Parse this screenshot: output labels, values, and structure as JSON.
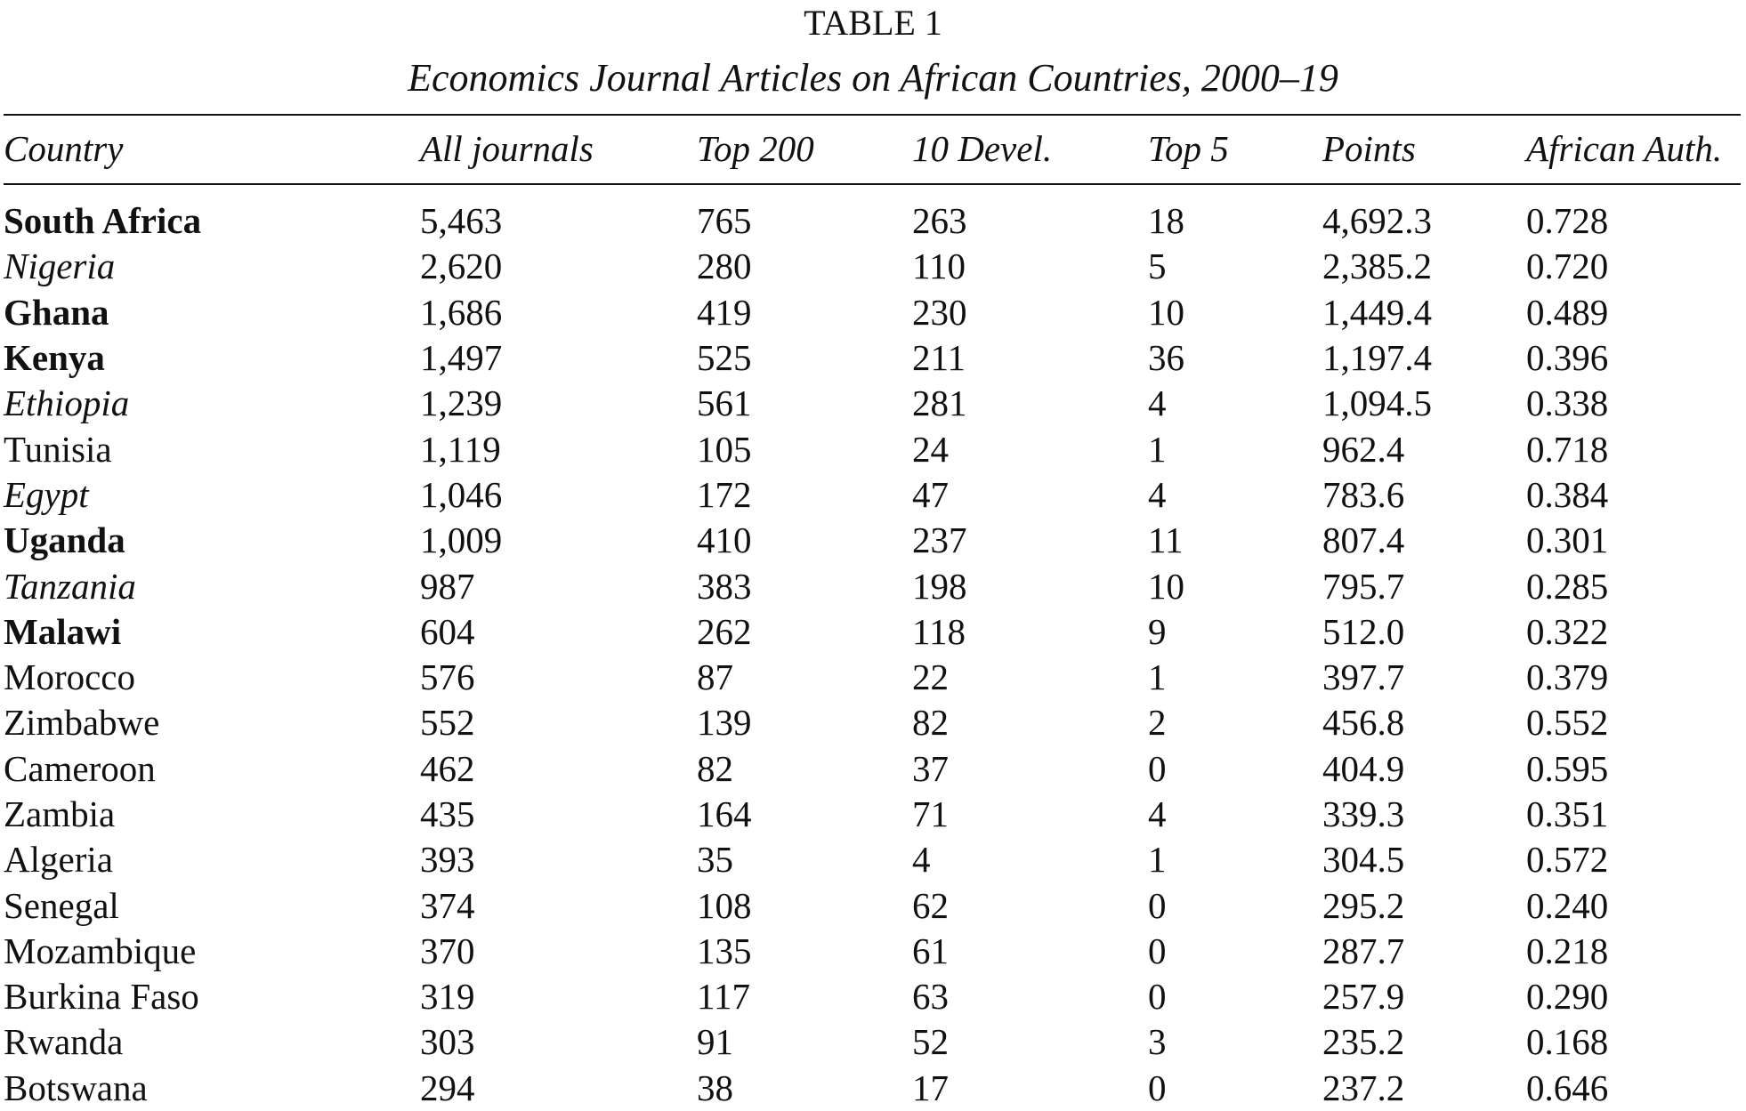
{
  "table": {
    "number": "TABLE 1",
    "caption": "Economics Journal Articles on African Countries, 2000–19",
    "columns": [
      "Country",
      "All journals",
      "Top 200",
      "10 Devel.",
      "Top 5",
      "Points",
      "African Auth."
    ],
    "rows": [
      {
        "country": "South Africa",
        "style": "bold",
        "all_journals": "5,463",
        "top_200": "765",
        "ten_devel": "263",
        "top_5": "18",
        "points": "4,692.3",
        "african_auth": "0.728"
      },
      {
        "country": "Nigeria",
        "style": "italic",
        "all_journals": "2,620",
        "top_200": "280",
        "ten_devel": "110",
        "top_5": "5",
        "points": "2,385.2",
        "african_auth": "0.720"
      },
      {
        "country": "Ghana",
        "style": "bold",
        "all_journals": "1,686",
        "top_200": "419",
        "ten_devel": "230",
        "top_5": "10",
        "points": "1,449.4",
        "african_auth": "0.489"
      },
      {
        "country": "Kenya",
        "style": "bold",
        "all_journals": "1,497",
        "top_200": "525",
        "ten_devel": "211",
        "top_5": "36",
        "points": "1,197.4",
        "african_auth": "0.396"
      },
      {
        "country": "Ethiopia",
        "style": "italic",
        "all_journals": "1,239",
        "top_200": "561",
        "ten_devel": "281",
        "top_5": "4",
        "points": "1,094.5",
        "african_auth": "0.338"
      },
      {
        "country": "Tunisia",
        "style": "normal",
        "all_journals": "1,119",
        "top_200": "105",
        "ten_devel": "24",
        "top_5": "1",
        "points": "962.4",
        "african_auth": "0.718"
      },
      {
        "country": "Egypt",
        "style": "italic",
        "all_journals": "1,046",
        "top_200": "172",
        "ten_devel": "47",
        "top_5": "4",
        "points": "783.6",
        "african_auth": "0.384"
      },
      {
        "country": "Uganda",
        "style": "bold",
        "all_journals": "1,009",
        "top_200": "410",
        "ten_devel": "237",
        "top_5": "11",
        "points": "807.4",
        "african_auth": "0.301"
      },
      {
        "country": "Tanzania",
        "style": "italic",
        "all_journals": "987",
        "top_200": "383",
        "ten_devel": "198",
        "top_5": "10",
        "points": "795.7",
        "african_auth": "0.285"
      },
      {
        "country": "Malawi",
        "style": "bold",
        "all_journals": "604",
        "top_200": "262",
        "ten_devel": "118",
        "top_5": "9",
        "points": "512.0",
        "african_auth": "0.322"
      },
      {
        "country": "Morocco",
        "style": "normal",
        "all_journals": "576",
        "top_200": "87",
        "ten_devel": "22",
        "top_5": "1",
        "points": "397.7",
        "african_auth": "0.379"
      },
      {
        "country": "Zimbabwe",
        "style": "normal",
        "all_journals": "552",
        "top_200": "139",
        "ten_devel": "82",
        "top_5": "2",
        "points": "456.8",
        "african_auth": "0.552"
      },
      {
        "country": "Cameroon",
        "style": "normal",
        "all_journals": "462",
        "top_200": "82",
        "ten_devel": "37",
        "top_5": "0",
        "points": "404.9",
        "african_auth": "0.595"
      },
      {
        "country": "Zambia",
        "style": "normal",
        "all_journals": "435",
        "top_200": "164",
        "ten_devel": "71",
        "top_5": "4",
        "points": "339.3",
        "african_auth": "0.351"
      },
      {
        "country": "Algeria",
        "style": "normal",
        "all_journals": "393",
        "top_200": "35",
        "ten_devel": "4",
        "top_5": "1",
        "points": "304.5",
        "african_auth": "0.572"
      },
      {
        "country": "Senegal",
        "style": "normal",
        "all_journals": "374",
        "top_200": "108",
        "ten_devel": "62",
        "top_5": "0",
        "points": "295.2",
        "african_auth": "0.240"
      },
      {
        "country": "Mozambique",
        "style": "normal",
        "all_journals": "370",
        "top_200": "135",
        "ten_devel": "61",
        "top_5": "0",
        "points": "287.7",
        "african_auth": "0.218"
      },
      {
        "country": "Burkina Faso",
        "style": "normal",
        "all_journals": "319",
        "top_200": "117",
        "ten_devel": "63",
        "top_5": "0",
        "points": "257.9",
        "african_auth": "0.290"
      },
      {
        "country": "Rwanda",
        "style": "normal",
        "all_journals": "303",
        "top_200": "91",
        "ten_devel": "52",
        "top_5": "3",
        "points": "235.2",
        "african_auth": "0.168"
      },
      {
        "country": "Botswana",
        "style": "normal",
        "all_journals": "294",
        "top_200": "38",
        "ten_devel": "17",
        "top_5": "0",
        "points": "237.2",
        "african_auth": "0.646"
      }
    ]
  }
}
